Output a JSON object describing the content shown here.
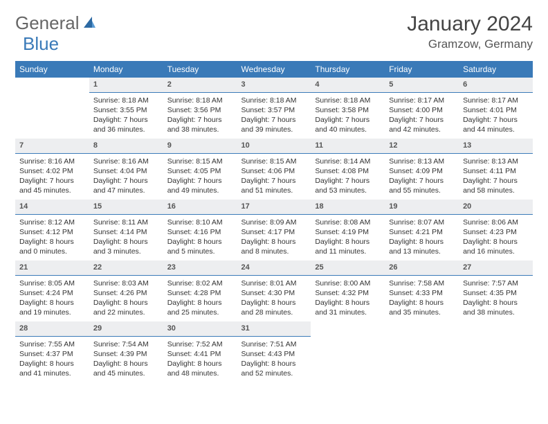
{
  "logo": {
    "general": "General",
    "blue": "Blue"
  },
  "title": "January 2024",
  "location": "Gramzow, Germany",
  "colors": {
    "header_bg": "#3a7ab8",
    "header_text": "#ffffff",
    "daybar_bg": "#edeef0",
    "daybar_border": "#3a7ab8",
    "body_text": "#333333",
    "page_bg": "#ffffff",
    "logo_gray": "#666666",
    "logo_blue": "#3a7ab8"
  },
  "weekdays": [
    "Sunday",
    "Monday",
    "Tuesday",
    "Wednesday",
    "Thursday",
    "Friday",
    "Saturday"
  ],
  "weeks": [
    [
      {
        "empty": true
      },
      {
        "num": "1",
        "sunrise": "Sunrise: 8:18 AM",
        "sunset": "Sunset: 3:55 PM",
        "day1": "Daylight: 7 hours",
        "day2": "and 36 minutes."
      },
      {
        "num": "2",
        "sunrise": "Sunrise: 8:18 AM",
        "sunset": "Sunset: 3:56 PM",
        "day1": "Daylight: 7 hours",
        "day2": "and 38 minutes."
      },
      {
        "num": "3",
        "sunrise": "Sunrise: 8:18 AM",
        "sunset": "Sunset: 3:57 PM",
        "day1": "Daylight: 7 hours",
        "day2": "and 39 minutes."
      },
      {
        "num": "4",
        "sunrise": "Sunrise: 8:18 AM",
        "sunset": "Sunset: 3:58 PM",
        "day1": "Daylight: 7 hours",
        "day2": "and 40 minutes."
      },
      {
        "num": "5",
        "sunrise": "Sunrise: 8:17 AM",
        "sunset": "Sunset: 4:00 PM",
        "day1": "Daylight: 7 hours",
        "day2": "and 42 minutes."
      },
      {
        "num": "6",
        "sunrise": "Sunrise: 8:17 AM",
        "sunset": "Sunset: 4:01 PM",
        "day1": "Daylight: 7 hours",
        "day2": "and 44 minutes."
      }
    ],
    [
      {
        "num": "7",
        "sunrise": "Sunrise: 8:16 AM",
        "sunset": "Sunset: 4:02 PM",
        "day1": "Daylight: 7 hours",
        "day2": "and 45 minutes."
      },
      {
        "num": "8",
        "sunrise": "Sunrise: 8:16 AM",
        "sunset": "Sunset: 4:04 PM",
        "day1": "Daylight: 7 hours",
        "day2": "and 47 minutes."
      },
      {
        "num": "9",
        "sunrise": "Sunrise: 8:15 AM",
        "sunset": "Sunset: 4:05 PM",
        "day1": "Daylight: 7 hours",
        "day2": "and 49 minutes."
      },
      {
        "num": "10",
        "sunrise": "Sunrise: 8:15 AM",
        "sunset": "Sunset: 4:06 PM",
        "day1": "Daylight: 7 hours",
        "day2": "and 51 minutes."
      },
      {
        "num": "11",
        "sunrise": "Sunrise: 8:14 AM",
        "sunset": "Sunset: 4:08 PM",
        "day1": "Daylight: 7 hours",
        "day2": "and 53 minutes."
      },
      {
        "num": "12",
        "sunrise": "Sunrise: 8:13 AM",
        "sunset": "Sunset: 4:09 PM",
        "day1": "Daylight: 7 hours",
        "day2": "and 55 minutes."
      },
      {
        "num": "13",
        "sunrise": "Sunrise: 8:13 AM",
        "sunset": "Sunset: 4:11 PM",
        "day1": "Daylight: 7 hours",
        "day2": "and 58 minutes."
      }
    ],
    [
      {
        "num": "14",
        "sunrise": "Sunrise: 8:12 AM",
        "sunset": "Sunset: 4:12 PM",
        "day1": "Daylight: 8 hours",
        "day2": "and 0 minutes."
      },
      {
        "num": "15",
        "sunrise": "Sunrise: 8:11 AM",
        "sunset": "Sunset: 4:14 PM",
        "day1": "Daylight: 8 hours",
        "day2": "and 3 minutes."
      },
      {
        "num": "16",
        "sunrise": "Sunrise: 8:10 AM",
        "sunset": "Sunset: 4:16 PM",
        "day1": "Daylight: 8 hours",
        "day2": "and 5 minutes."
      },
      {
        "num": "17",
        "sunrise": "Sunrise: 8:09 AM",
        "sunset": "Sunset: 4:17 PM",
        "day1": "Daylight: 8 hours",
        "day2": "and 8 minutes."
      },
      {
        "num": "18",
        "sunrise": "Sunrise: 8:08 AM",
        "sunset": "Sunset: 4:19 PM",
        "day1": "Daylight: 8 hours",
        "day2": "and 11 minutes."
      },
      {
        "num": "19",
        "sunrise": "Sunrise: 8:07 AM",
        "sunset": "Sunset: 4:21 PM",
        "day1": "Daylight: 8 hours",
        "day2": "and 13 minutes."
      },
      {
        "num": "20",
        "sunrise": "Sunrise: 8:06 AM",
        "sunset": "Sunset: 4:23 PM",
        "day1": "Daylight: 8 hours",
        "day2": "and 16 minutes."
      }
    ],
    [
      {
        "num": "21",
        "sunrise": "Sunrise: 8:05 AM",
        "sunset": "Sunset: 4:24 PM",
        "day1": "Daylight: 8 hours",
        "day2": "and 19 minutes."
      },
      {
        "num": "22",
        "sunrise": "Sunrise: 8:03 AM",
        "sunset": "Sunset: 4:26 PM",
        "day1": "Daylight: 8 hours",
        "day2": "and 22 minutes."
      },
      {
        "num": "23",
        "sunrise": "Sunrise: 8:02 AM",
        "sunset": "Sunset: 4:28 PM",
        "day1": "Daylight: 8 hours",
        "day2": "and 25 minutes."
      },
      {
        "num": "24",
        "sunrise": "Sunrise: 8:01 AM",
        "sunset": "Sunset: 4:30 PM",
        "day1": "Daylight: 8 hours",
        "day2": "and 28 minutes."
      },
      {
        "num": "25",
        "sunrise": "Sunrise: 8:00 AM",
        "sunset": "Sunset: 4:32 PM",
        "day1": "Daylight: 8 hours",
        "day2": "and 31 minutes."
      },
      {
        "num": "26",
        "sunrise": "Sunrise: 7:58 AM",
        "sunset": "Sunset: 4:33 PM",
        "day1": "Daylight: 8 hours",
        "day2": "and 35 minutes."
      },
      {
        "num": "27",
        "sunrise": "Sunrise: 7:57 AM",
        "sunset": "Sunset: 4:35 PM",
        "day1": "Daylight: 8 hours",
        "day2": "and 38 minutes."
      }
    ],
    [
      {
        "num": "28",
        "sunrise": "Sunrise: 7:55 AM",
        "sunset": "Sunset: 4:37 PM",
        "day1": "Daylight: 8 hours",
        "day2": "and 41 minutes."
      },
      {
        "num": "29",
        "sunrise": "Sunrise: 7:54 AM",
        "sunset": "Sunset: 4:39 PM",
        "day1": "Daylight: 8 hours",
        "day2": "and 45 minutes."
      },
      {
        "num": "30",
        "sunrise": "Sunrise: 7:52 AM",
        "sunset": "Sunset: 4:41 PM",
        "day1": "Daylight: 8 hours",
        "day2": "and 48 minutes."
      },
      {
        "num": "31",
        "sunrise": "Sunrise: 7:51 AM",
        "sunset": "Sunset: 4:43 PM",
        "day1": "Daylight: 8 hours",
        "day2": "and 52 minutes."
      },
      {
        "empty": true
      },
      {
        "empty": true
      },
      {
        "empty": true
      }
    ]
  ]
}
